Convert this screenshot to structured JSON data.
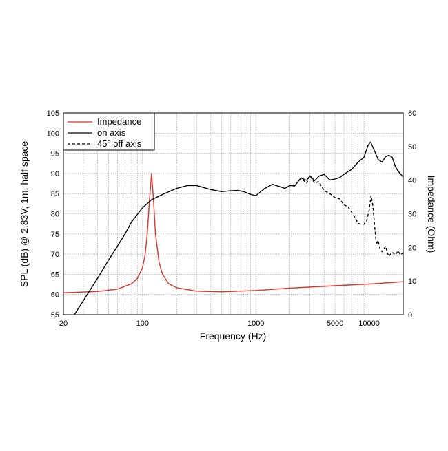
{
  "chart_data": {
    "type": "line",
    "x_scale": "log",
    "xlim": [
      20,
      20000
    ],
    "ylim_left": [
      55,
      105
    ],
    "ylim_right": [
      0,
      60
    ],
    "xlabel": "Frequency (Hz)",
    "ylabel_left": "SPL (dB) @ 2.83V, 1m, half space",
    "ylabel_right": "Impedance (Ohm)",
    "x_tick_labels": [
      "20",
      "100",
      "1000",
      "5000",
      "10000"
    ],
    "x_tick_values": [
      20,
      100,
      1000,
      5000,
      10000
    ],
    "y_left_ticks": [
      55,
      60,
      65,
      70,
      75,
      80,
      85,
      90,
      95,
      100,
      105
    ],
    "y_right_ticks": [
      0,
      10,
      20,
      30,
      40,
      50,
      60
    ],
    "grid": true,
    "legend_position": "top-left",
    "series": [
      {
        "name": "Impedance",
        "axis": "right",
        "color": "#d9312b",
        "dash": "solid",
        "points": [
          [
            20,
            6.5
          ],
          [
            40,
            6.9
          ],
          [
            60,
            7.6
          ],
          [
            80,
            9.2
          ],
          [
            90,
            10.8
          ],
          [
            100,
            14.0
          ],
          [
            105,
            17.5
          ],
          [
            110,
            24.0
          ],
          [
            115,
            34.0
          ],
          [
            120,
            42.0
          ],
          [
            125,
            34.0
          ],
          [
            130,
            24.0
          ],
          [
            140,
            15.5
          ],
          [
            150,
            12.0
          ],
          [
            170,
            9.2
          ],
          [
            200,
            8.0
          ],
          [
            300,
            7.0
          ],
          [
            500,
            6.8
          ],
          [
            1000,
            7.2
          ],
          [
            2000,
            7.9
          ],
          [
            5000,
            8.6
          ],
          [
            10000,
            9.1
          ],
          [
            20000,
            9.8
          ]
        ]
      },
      {
        "name": "on axis",
        "axis": "left",
        "color": "#000000",
        "dash": "solid",
        "points": [
          [
            25,
            55.0
          ],
          [
            30,
            58.5
          ],
          [
            40,
            64.0
          ],
          [
            50,
            68.5
          ],
          [
            60,
            72.0
          ],
          [
            70,
            75.0
          ],
          [
            80,
            78.0
          ],
          [
            100,
            81.5
          ],
          [
            120,
            83.5
          ],
          [
            150,
            84.8
          ],
          [
            200,
            86.3
          ],
          [
            250,
            87.0
          ],
          [
            300,
            87.0
          ],
          [
            400,
            86.0
          ],
          [
            500,
            85.5
          ],
          [
            600,
            85.7
          ],
          [
            700,
            85.8
          ],
          [
            800,
            85.4
          ],
          [
            900,
            84.8
          ],
          [
            1000,
            84.5
          ],
          [
            1200,
            86.3
          ],
          [
            1400,
            87.3
          ],
          [
            1600,
            86.8
          ],
          [
            1800,
            86.3
          ],
          [
            2000,
            87.0
          ],
          [
            2200,
            86.9
          ],
          [
            2500,
            88.9
          ],
          [
            2800,
            88.3
          ],
          [
            3000,
            89.4
          ],
          [
            3300,
            88.2
          ],
          [
            3600,
            89.3
          ],
          [
            4000,
            89.8
          ],
          [
            4500,
            88.4
          ],
          [
            5000,
            88.6
          ],
          [
            5500,
            89.0
          ],
          [
            6000,
            89.8
          ],
          [
            7000,
            91.0
          ],
          [
            8000,
            92.8
          ],
          [
            9000,
            94.0
          ],
          [
            9800,
            97.0
          ],
          [
            10300,
            97.8
          ],
          [
            11000,
            96.0
          ],
          [
            12000,
            93.5
          ],
          [
            13000,
            92.8
          ],
          [
            14000,
            94.2
          ],
          [
            15000,
            94.5
          ],
          [
            16000,
            94.0
          ],
          [
            17000,
            91.8
          ],
          [
            18000,
            90.6
          ],
          [
            20000,
            89.1
          ]
        ]
      },
      {
        "name": "45° off axis",
        "axis": "left",
        "color": "#000000",
        "dash": "dashed",
        "points": [
          [
            2400,
            88.3
          ],
          [
            2600,
            88.5
          ],
          [
            2800,
            87.5
          ],
          [
            3000,
            89.5
          ],
          [
            3300,
            87.6
          ],
          [
            3600,
            88.0
          ],
          [
            4000,
            85.8
          ],
          [
            4500,
            85.0
          ],
          [
            5000,
            84.0
          ],
          [
            5500,
            83.7
          ],
          [
            6000,
            82.2
          ],
          [
            6500,
            81.8
          ],
          [
            7000,
            80.4
          ],
          [
            7600,
            78.8
          ],
          [
            8000,
            77.6
          ],
          [
            8500,
            77.4
          ],
          [
            9000,
            77.4
          ],
          [
            9500,
            78.2
          ],
          [
            10000,
            80.8
          ],
          [
            10400,
            84.5
          ],
          [
            10800,
            82.0
          ],
          [
            11200,
            76.8
          ],
          [
            11600,
            72.3
          ],
          [
            12000,
            73.4
          ],
          [
            12500,
            71.2
          ],
          [
            13000,
            70.6
          ],
          [
            14000,
            72.0
          ],
          [
            14500,
            70.2
          ],
          [
            15000,
            69.5
          ],
          [
            16000,
            70.5
          ],
          [
            17000,
            69.8
          ],
          [
            18000,
            70.8
          ],
          [
            19000,
            69.8
          ],
          [
            20000,
            70.4
          ]
        ]
      }
    ]
  }
}
